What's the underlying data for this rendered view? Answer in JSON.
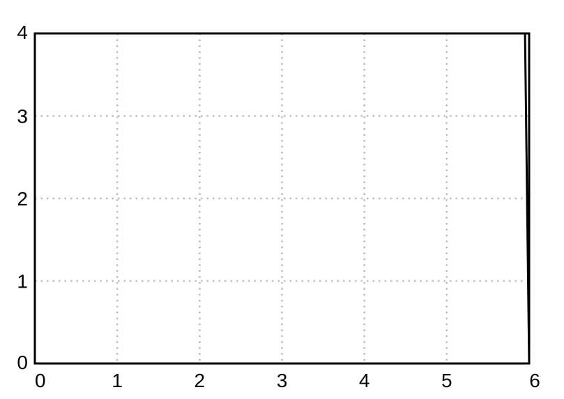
{
  "chart_data": {
    "type": "line",
    "title": "",
    "xlabel": "",
    "ylabel": "",
    "xlim": [
      0,
      6
    ],
    "ylim": [
      0,
      4
    ],
    "grid": true,
    "x_ticks": [
      "0",
      "1",
      "2",
      "3",
      "4",
      "5",
      "6"
    ],
    "y_ticks": [
      "0",
      "1",
      "2",
      "3",
      "4"
    ],
    "series": [
      {
        "x": [
          0,
          6,
          6,
          5.95,
          0
        ],
        "y": [
          4,
          4,
          0,
          4,
          4
        ]
      }
    ]
  },
  "colors": {
    "line": "#000000",
    "grid": "#bdbdbd",
    "frame": "#000000"
  }
}
